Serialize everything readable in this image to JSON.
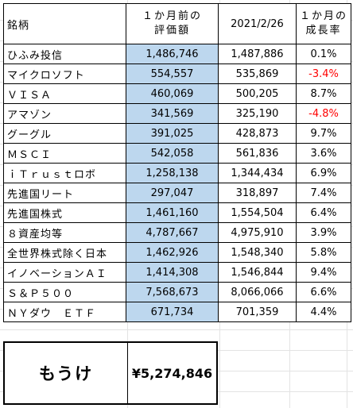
{
  "header": {
    "name": "銘柄",
    "prev_line1": "１か月前の",
    "prev_line2": "評価額",
    "date": "2021/2/26",
    "rate_line1": "１か月の",
    "rate_line2": "成長率"
  },
  "rows": [
    {
      "name": "ひふみ投信",
      "prev": "1,486,746",
      "current": "1,487,886",
      "rate": "0.1%",
      "negative": false
    },
    {
      "name": "マイクロソフト",
      "prev": "554,557",
      "current": "535,869",
      "rate": "-3.4%",
      "negative": true
    },
    {
      "name": "ＶＩＳＡ",
      "prev": "460,069",
      "current": "500,205",
      "rate": "8.7%",
      "negative": false
    },
    {
      "name": "アマゾン",
      "prev": "341,569",
      "current": "325,190",
      "rate": "-4.8%",
      "negative": true
    },
    {
      "name": "グーグル",
      "prev": "391,025",
      "current": "428,873",
      "rate": "9.7%",
      "negative": false
    },
    {
      "name": "ＭＳＣＩ",
      "prev": "542,058",
      "current": "561,836",
      "rate": "3.6%",
      "negative": false
    },
    {
      "name": "ｉＴｒｕｓｔロボ",
      "prev": "1,258,138",
      "current": "1,344,434",
      "rate": "6.9%",
      "negative": false
    },
    {
      "name": "先進国リート",
      "prev": "297,047",
      "current": "318,897",
      "rate": "7.4%",
      "negative": false
    },
    {
      "name": "先進国株式",
      "prev": "1,461,160",
      "current": "1,554,504",
      "rate": "6.4%",
      "negative": false
    },
    {
      "name": "８資産均等",
      "prev": "4,787,667",
      "current": "4,975,910",
      "rate": "3.9%",
      "negative": false
    },
    {
      "name": "全世界株式除く日本",
      "prev": "1,462,926",
      "current": "1,548,340",
      "rate": "5.8%",
      "negative": false
    },
    {
      "name": "イノベーションＡＩ",
      "prev": "1,414,308",
      "current": "1,546,844",
      "rate": "9.4%",
      "negative": false
    },
    {
      "name": "Ｓ＆Ｐ５００",
      "prev": "7,568,673",
      "current": "8,066,066",
      "rate": "6.6%",
      "negative": false
    },
    {
      "name": "ＮＹダウ　ＥＴＦ",
      "prev": "671,734",
      "current": "701,359",
      "rate": "4.4%",
      "negative": false
    }
  ],
  "profit": {
    "label": "もうけ",
    "value": "¥5,274,846"
  },
  "colors": {
    "prev_fill": "#bdd7ee",
    "negative_text": "#ff0000"
  }
}
